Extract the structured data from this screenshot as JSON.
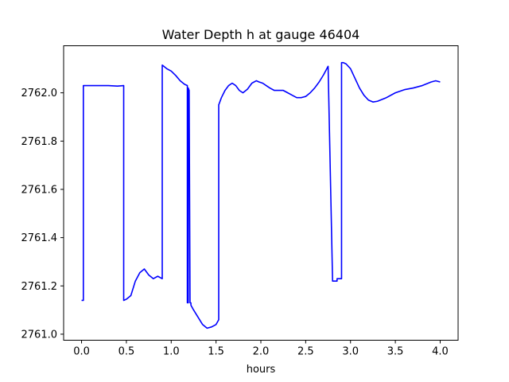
{
  "chart_data": {
    "type": "line",
    "title": "Water Depth h at gauge 46404",
    "xlabel": "hours",
    "ylabel": "",
    "xlim": [
      -0.2,
      4.2
    ],
    "ylim": [
      2760.975,
      2762.195
    ],
    "xticks": [
      0.0,
      0.5,
      1.0,
      1.5,
      2.0,
      2.5,
      3.0,
      3.5,
      4.0
    ],
    "xtick_labels": [
      "0.0",
      "0.5",
      "1.0",
      "1.5",
      "2.0",
      "2.5",
      "3.0",
      "3.5",
      "4.0"
    ],
    "yticks": [
      2761.0,
      2761.2,
      2761.4,
      2761.6,
      2761.8,
      2762.0
    ],
    "ytick_labels": [
      "2761.0",
      "2761.2",
      "2761.4",
      "2761.6",
      "2761.8",
      "2762.0"
    ],
    "grid": false,
    "legend": "none",
    "series": [
      {
        "color": "#0000ff",
        "x": [
          0.0,
          0.02,
          0.02,
          0.1,
          0.2,
          0.3,
          0.4,
          0.47,
          0.47,
          0.5,
          0.55,
          0.6,
          0.65,
          0.7,
          0.75,
          0.8,
          0.85,
          0.9,
          0.9,
          0.95,
          1.0,
          1.05,
          1.1,
          1.15,
          1.18,
          1.18,
          1.19,
          1.19,
          1.2,
          1.21,
          1.22,
          1.22,
          1.25,
          1.3,
          1.35,
          1.4,
          1.45,
          1.5,
          1.53,
          1.53,
          1.56,
          1.6,
          1.64,
          1.68,
          1.72,
          1.76,
          1.8,
          1.85,
          1.9,
          1.95,
          1.98,
          2.02,
          2.06,
          2.1,
          2.15,
          2.2,
          2.25,
          2.3,
          2.35,
          2.4,
          2.45,
          2.5,
          2.55,
          2.6,
          2.65,
          2.7,
          2.75,
          2.8,
          2.85,
          2.85,
          2.9,
          2.9,
          2.92,
          2.95,
          3.0,
          3.05,
          3.1,
          3.15,
          3.2,
          3.25,
          3.3,
          3.4,
          3.5,
          3.6,
          3.7,
          3.8,
          3.9,
          3.95,
          4.0
        ],
        "y": [
          2761.14,
          2761.14,
          2762.03,
          2762.03,
          2762.03,
          2762.03,
          2762.028,
          2762.03,
          2761.14,
          2761.145,
          2761.16,
          2761.22,
          2761.255,
          2761.27,
          2761.245,
          2761.23,
          2761.24,
          2761.23,
          2762.115,
          2762.1,
          2762.09,
          2762.072,
          2762.05,
          2762.035,
          2762.03,
          2761.13,
          2761.13,
          2762.02,
          2762.01,
          2761.13,
          2761.13,
          2761.12,
          2761.1,
          2761.07,
          2761.04,
          2761.025,
          2761.03,
          2761.04,
          2761.06,
          2761.95,
          2761.98,
          2762.01,
          2762.03,
          2762.04,
          2762.03,
          2762.01,
          2762.0,
          2762.015,
          2762.04,
          2762.05,
          2762.045,
          2762.04,
          2762.03,
          2762.02,
          2762.01,
          2762.01,
          2762.01,
          2762.0,
          2761.99,
          2761.98,
          2761.98,
          2761.985,
          2762.0,
          2762.02,
          2762.045,
          2762.075,
          2762.11,
          2761.22,
          2761.22,
          2761.23,
          2761.23,
          2762.125,
          2762.125,
          2762.12,
          2762.1,
          2762.06,
          2762.02,
          2761.99,
          2761.97,
          2761.962,
          2761.965,
          2761.98,
          2762.0,
          2762.013,
          2762.02,
          2762.03,
          2762.045,
          2762.05,
          2762.045
        ]
      }
    ]
  }
}
